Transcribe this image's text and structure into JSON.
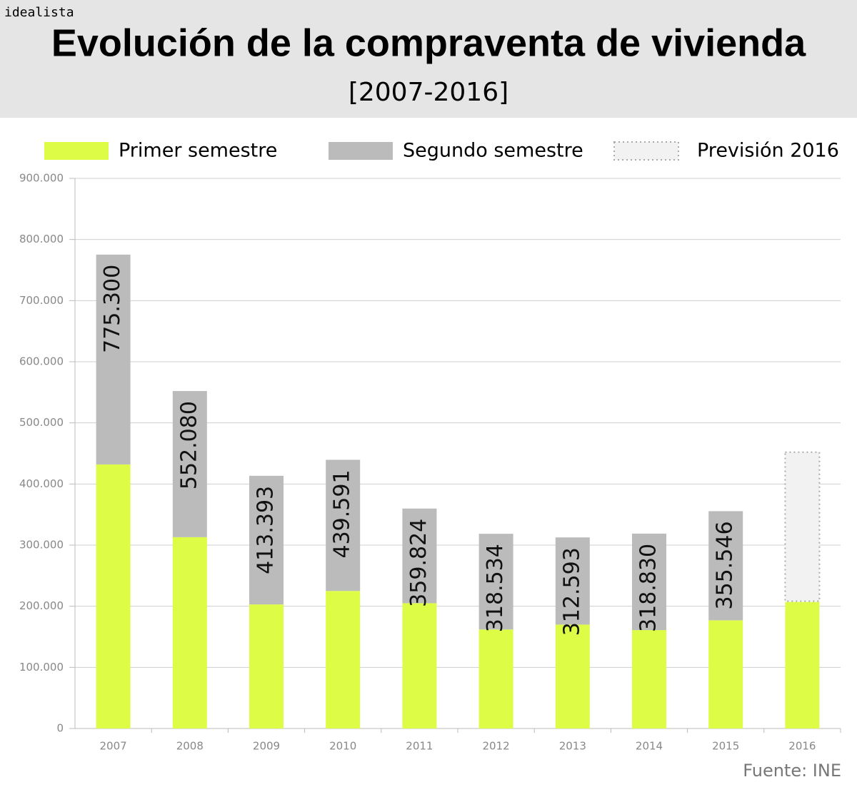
{
  "brand": "idealista",
  "chart_data": {
    "type": "stacked_bar",
    "title": "Evolución de la compraventa de vivienda",
    "subtitle": "[2007-2016]",
    "source": "Fuente: INE",
    "categories": [
      "2007",
      "2008",
      "2009",
      "2010",
      "2011",
      "2012",
      "2013",
      "2014",
      "2015",
      "2016"
    ],
    "series": [
      {
        "name": "Primer semestre",
        "color": "#dcfc45",
        "values": [
          432000,
          313000,
          203000,
          225000,
          205000,
          162000,
          170000,
          161000,
          177000,
          207000
        ]
      },
      {
        "name": "Segundo semestre",
        "color": "#bbbbbb",
        "values": [
          343300,
          239080,
          210393,
          214591,
          154824,
          156534,
          142593,
          157830,
          178546,
          null
        ]
      },
      {
        "name": "Previsión 2016",
        "color": "#f2f2f2",
        "stroke_style": "dotted",
        "values": [
          null,
          null,
          null,
          null,
          null,
          null,
          null,
          null,
          null,
          245000
        ]
      }
    ],
    "totals": {
      "values": [
        775300,
        552080,
        413393,
        439591,
        359824,
        318534,
        312593,
        318830,
        355546,
        null
      ],
      "value_labels": [
        "775.300",
        "552.080",
        "413.393",
        "439.591",
        "359.824",
        "318.534",
        "312.593",
        "318.830",
        "355.546",
        null
      ]
    },
    "ylim": [
      0,
      900000
    ],
    "yticks": [
      0,
      {
        "value": 100000,
        "label": "100.000"
      },
      {
        "value": 200000,
        "label": "200.000"
      },
      {
        "value": 300000,
        "label": "300.000"
      },
      {
        "value": 400000,
        "label": "400.000"
      },
      {
        "value": 500000,
        "label": "500.000"
      },
      {
        "value": 600000,
        "label": "600.000"
      },
      {
        "value": 700000,
        "label": "700.000"
      },
      {
        "value": 800000,
        "label": "800.000"
      },
      {
        "value": 900000,
        "label": "900.000"
      }
    ],
    "grid": true
  }
}
